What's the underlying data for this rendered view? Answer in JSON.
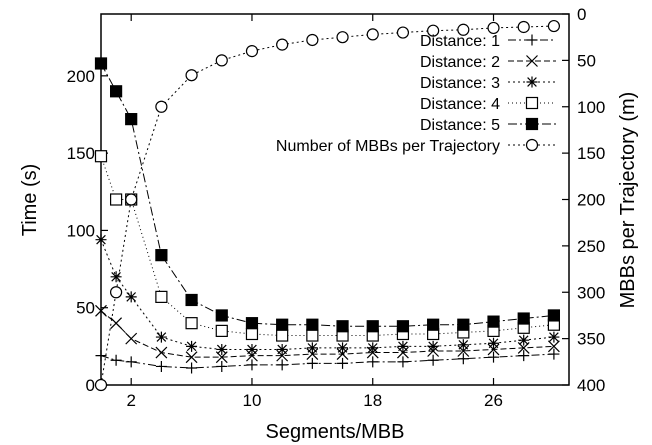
{
  "chart_data": {
    "type": "line",
    "title": "",
    "xlabel": "Segments/MBB",
    "ylabel_left": "Time (s)",
    "ylabel_right": "MBBs per Trajectory (m)",
    "xlim": [
      0,
      31
    ],
    "ylim_left": [
      0,
      240
    ],
    "ylim_right_inverted": [
      0,
      400
    ],
    "x_ticks": [
      2,
      10,
      18,
      26
    ],
    "y_left_ticks": [
      0,
      50,
      100,
      150,
      200
    ],
    "y_right_ticks": [
      0,
      50,
      100,
      150,
      200,
      250,
      300,
      350,
      400
    ],
    "grid": false,
    "legend_position": "top-right",
    "x": [
      0,
      1,
      2,
      4,
      6,
      8,
      10,
      12,
      14,
      16,
      18,
      20,
      22,
      24,
      26,
      28,
      30
    ],
    "series": [
      {
        "name": "Distance: 1",
        "axis": "left",
        "marker": "plus",
        "dash": "8 3 2 3",
        "x": [
          0,
          1,
          2,
          4,
          6,
          8,
          10,
          12,
          14,
          16,
          18,
          20,
          22,
          24,
          26,
          28,
          30
        ],
        "values": [
          19,
          16,
          15,
          12,
          11,
          12,
          13,
          13,
          14,
          14,
          15,
          15,
          16,
          17,
          18,
          19,
          20
        ]
      },
      {
        "name": "Distance: 2",
        "axis": "left",
        "marker": "x",
        "dash": "6 3",
        "x": [
          0,
          1,
          2,
          4,
          6,
          8,
          10,
          12,
          14,
          16,
          18,
          20,
          22,
          24,
          26,
          28,
          30
        ],
        "values": [
          48,
          40,
          30,
          21,
          18,
          18,
          19,
          19,
          20,
          20,
          21,
          21,
          22,
          22,
          23,
          24,
          25
        ]
      },
      {
        "name": "Distance: 3",
        "axis": "left",
        "marker": "star",
        "dash": "2 3",
        "x": [
          0,
          1,
          2,
          4,
          6,
          8,
          10,
          12,
          14,
          16,
          18,
          20,
          22,
          24,
          26,
          28,
          30
        ],
        "values": [
          94,
          70,
          57,
          31,
          25,
          23,
          23,
          23,
          24,
          24,
          24,
          25,
          25,
          26,
          27,
          29,
          31
        ]
      },
      {
        "name": "Distance: 4",
        "axis": "left",
        "marker": "square-open",
        "dash": "1 3",
        "x": [
          0,
          1,
          2,
          4,
          6,
          8,
          10,
          12,
          14,
          16,
          18,
          20,
          22,
          24,
          26,
          28,
          30
        ],
        "values": [
          148,
          120,
          120,
          57,
          40,
          35,
          33,
          32,
          32,
          32,
          32,
          33,
          33,
          34,
          35,
          37,
          39
        ]
      },
      {
        "name": "Distance: 5",
        "axis": "left",
        "marker": "square-filled",
        "dash": "9 3 2 3",
        "x": [
          0,
          1,
          2,
          4,
          6,
          8,
          10,
          12,
          14,
          16,
          18,
          20,
          22,
          24,
          26,
          28,
          30
        ],
        "values": [
          208,
          190,
          172,
          84,
          55,
          45,
          40,
          39,
          39,
          38,
          38,
          38,
          39,
          39,
          41,
          43,
          45
        ]
      },
      {
        "name": "Number of MBBs per Trajectory",
        "axis": "right",
        "marker": "circle-open",
        "dash": "2 3",
        "x": [
          0,
          1,
          2,
          4,
          6,
          8,
          10,
          12,
          14,
          16,
          18,
          20,
          22,
          24,
          26,
          28,
          30
        ],
        "values": [
          400,
          300,
          200,
          100,
          66,
          50,
          40,
          33,
          28,
          25,
          22,
          20,
          18,
          17,
          15,
          14,
          13
        ]
      }
    ]
  }
}
